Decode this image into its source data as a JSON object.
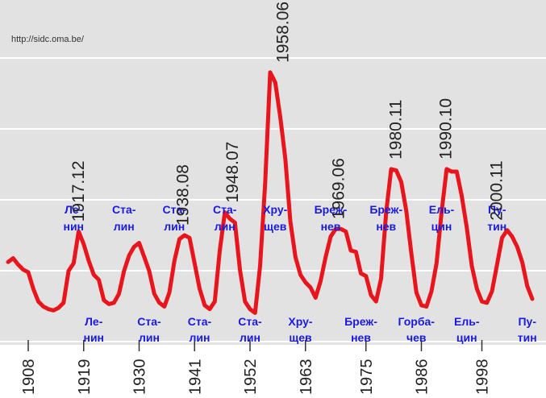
{
  "source_note": "http://sidc.oma.be/",
  "chart_data": {
    "type": "line",
    "title": "",
    "xlabel": "",
    "ylabel": "",
    "grid": true,
    "colors": {
      "line": "#e8151c",
      "annotation": "#1a1adf",
      "background": "#e2e2e2",
      "grid": "#ffffff"
    },
    "x_ticks": [
      1908,
      1919,
      1930,
      1941,
      1952,
      1963,
      1975,
      1986,
      1998
    ],
    "x": [
      1904,
      1905,
      1906,
      1907,
      1908,
      1909,
      1910,
      1911,
      1912,
      1913,
      1914,
      1915,
      1916,
      1917,
      1918,
      1919,
      1920,
      1921,
      1922,
      1923,
      1924,
      1925,
      1926,
      1927,
      1928,
      1929,
      1930,
      1931,
      1932,
      1933,
      1934,
      1935,
      1936,
      1937,
      1938,
      1939,
      1940,
      1941,
      1942,
      1943,
      1944,
      1945,
      1946,
      1947,
      1948,
      1949,
      1950,
      1951,
      1952,
      1953,
      1954,
      1955,
      1956,
      1957,
      1958,
      1959,
      1960,
      1961,
      1962,
      1963,
      1964,
      1965,
      1966,
      1967,
      1968,
      1969,
      1970,
      1971,
      1972,
      1973,
      1974,
      1975,
      1976,
      1977,
      1978,
      1979,
      1980,
      1981,
      1982,
      1983,
      1984,
      1985,
      1986,
      1987,
      1988,
      1989,
      1990,
      1991,
      1992,
      1993,
      1994,
      1995,
      1996,
      1997,
      1998,
      1999,
      2000,
      2001,
      2002,
      2003,
      2004,
      2005,
      2006,
      2007,
      2008
    ],
    "values": [
      41,
      44,
      39,
      35,
      33,
      20,
      10,
      6,
      4,
      3,
      5,
      9,
      34,
      40,
      65,
      55,
      42,
      31,
      27,
      11,
      8,
      9,
      16,
      34,
      46,
      53,
      56,
      45,
      34,
      16,
      9,
      6,
      17,
      42,
      59,
      62,
      60,
      40,
      20,
      7,
      4,
      10,
      50,
      80,
      75,
      72,
      35,
      10,
      4,
      1,
      38,
      103,
      190,
      182,
      155,
      122,
      73,
      45,
      31,
      25,
      21,
      13,
      26,
      45,
      61,
      67,
      67,
      65,
      50,
      49,
      32,
      30,
      15,
      10,
      28,
      80,
      114,
      113,
      104,
      81,
      48,
      17,
      7,
      6,
      18,
      40,
      80,
      114,
      112,
      112,
      93,
      68,
      38,
      20,
      10,
      9,
      18,
      39,
      60,
      66,
      61,
      53,
      41,
      22,
      12
    ],
    "annotations_upper": [
      {
        "x": 1917,
        "line1": "Ле-",
        "line2": "нин"
      },
      {
        "x": 1927,
        "line1": "Ста-",
        "line2": "лин"
      },
      {
        "x": 1937,
        "line1": "Ста-",
        "line2": "лин"
      },
      {
        "x": 1947,
        "line1": "Ста-",
        "line2": "лин"
      },
      {
        "x": 1957,
        "line1": "Хру-",
        "line2": "щев"
      },
      {
        "x": 1968,
        "line1": "Бреж-",
        "line2": "нев"
      },
      {
        "x": 1979,
        "line1": "Бреж-",
        "line2": "нев"
      },
      {
        "x": 1990,
        "line1": "Ель-",
        "line2": "цин"
      },
      {
        "x": 2001,
        "line1": "Пу-",
        "line2": "тин"
      }
    ],
    "annotations_lower": [
      {
        "x": 1921,
        "line1": "Ле-",
        "line2": "нин"
      },
      {
        "x": 1932,
        "line1": "Ста-",
        "line2": "лин"
      },
      {
        "x": 1942,
        "line1": "Ста-",
        "line2": "лин"
      },
      {
        "x": 1952,
        "line1": "Ста-",
        "line2": "лин"
      },
      {
        "x": 1962,
        "line1": "Хру-",
        "line2": "щев"
      },
      {
        "x": 1974,
        "line1": "Бреж-",
        "line2": "нев"
      },
      {
        "x": 1985,
        "line1": "Горба-",
        "line2": "чев"
      },
      {
        "x": 1995,
        "line1": "Ель-",
        "line2": "цин"
      },
      {
        "x": 2007,
        "line1": "Пу-",
        "line2": "тин"
      }
    ],
    "peak_labels": [
      {
        "x": 1917.9,
        "value": 65,
        "label": "1917.12"
      },
      {
        "x": 1938.6,
        "value": 62,
        "label": "1938.08"
      },
      {
        "x": 1948.5,
        "value": 80,
        "label": "1948.07"
      },
      {
        "x": 1958.5,
        "value": 190,
        "label": "1958.06"
      },
      {
        "x": 1969.5,
        "value": 67,
        "label": "1969.06"
      },
      {
        "x": 1980.9,
        "value": 114,
        "label": "1980.11"
      },
      {
        "x": 1990.8,
        "value": 114,
        "label": "1990.10"
      },
      {
        "x": 2000.9,
        "value": 66,
        "label": "2000.11"
      }
    ]
  }
}
